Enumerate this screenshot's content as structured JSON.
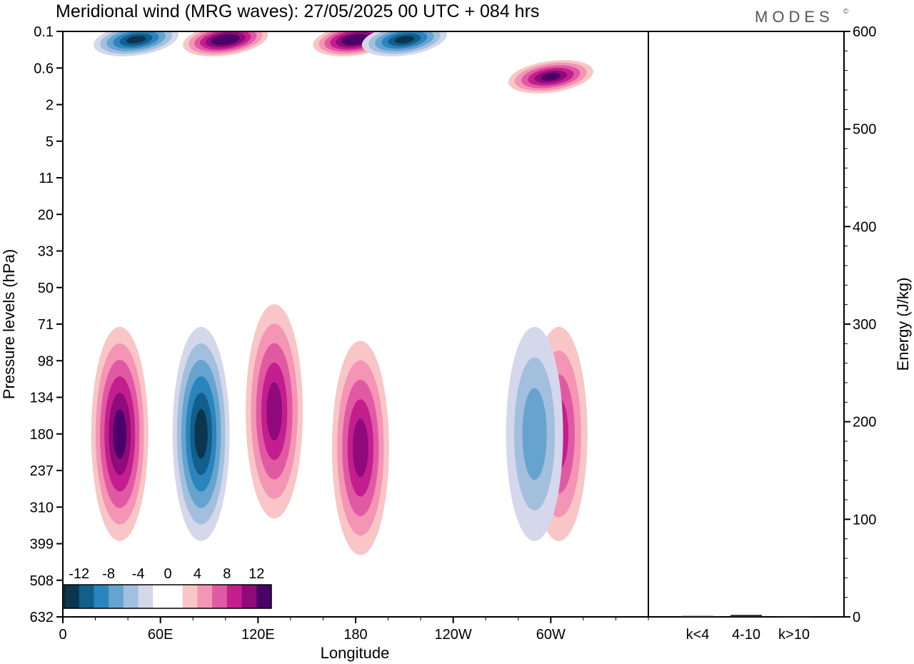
{
  "title": "Meridional wind (MRG waves):  27/05/2025  00 UTC  + 084 hrs",
  "logo": "MODES",
  "logo_mark": "©",
  "chart_data": [
    {
      "type": "heatmap",
      "title": "Meridional wind (MRG waves):  27/05/2025  00 UTC  + 084 hrs",
      "xlabel": "Longitude",
      "ylabel": "Pressure levels (hPa)",
      "x_ticks": [
        "0",
        "60E",
        "120E",
        "180",
        "120W",
        "60W"
      ],
      "y_ticks": [
        "0.1",
        "0.6",
        "2",
        "5",
        "11",
        "20",
        "33",
        "50",
        "71",
        "98",
        "134",
        "180",
        "237",
        "310",
        "399",
        "508",
        "632"
      ],
      "y_scale": "log-pressure",
      "colorbar": {
        "labels": [
          "-12",
          "-8",
          "-4",
          "0",
          "4",
          "8",
          "12"
        ],
        "colors": [
          "#0c3550",
          "#125f8c",
          "#2a84bd",
          "#66a3cf",
          "#a3bfde",
          "#d4d8ea",
          "#ffffff",
          "#ffffff",
          "#f8c6c6",
          "#f495b5",
          "#e05aa3",
          "#c41e8e",
          "#8f0a7a",
          "#4a0068"
        ]
      },
      "features": [
        {
          "lon": 35,
          "p": 180,
          "value": 12
        },
        {
          "lon": 85,
          "p": 180,
          "value": -12
        },
        {
          "lon": 130,
          "p": 150,
          "value": 10
        },
        {
          "lon": 183,
          "p": 200,
          "value": 10
        },
        {
          "lon": 100,
          "p": 0.15,
          "value": 14
        },
        {
          "lon": 180,
          "p": 0.15,
          "value": 14
        },
        {
          "lon": 45,
          "p": 0.15,
          "value": -12
        },
        {
          "lon": 210,
          "p": 0.15,
          "value": -12
        },
        {
          "lon": 300,
          "p": 0.8,
          "value": 12
        },
        {
          "lon": 305,
          "p": 180,
          "value": 8
        },
        {
          "lon": 290,
          "p": 180,
          "value": -6
        }
      ]
    },
    {
      "type": "bar",
      "categories": [
        "k<4",
        "4-10",
        "k>10"
      ],
      "values": [
        1,
        2,
        0
      ],
      "ylabel": "Energy (J/kg)",
      "ylim": [
        0,
        600
      ],
      "y_ticks": [
        "0",
        "100",
        "200",
        "300",
        "400",
        "500",
        "600"
      ]
    }
  ]
}
